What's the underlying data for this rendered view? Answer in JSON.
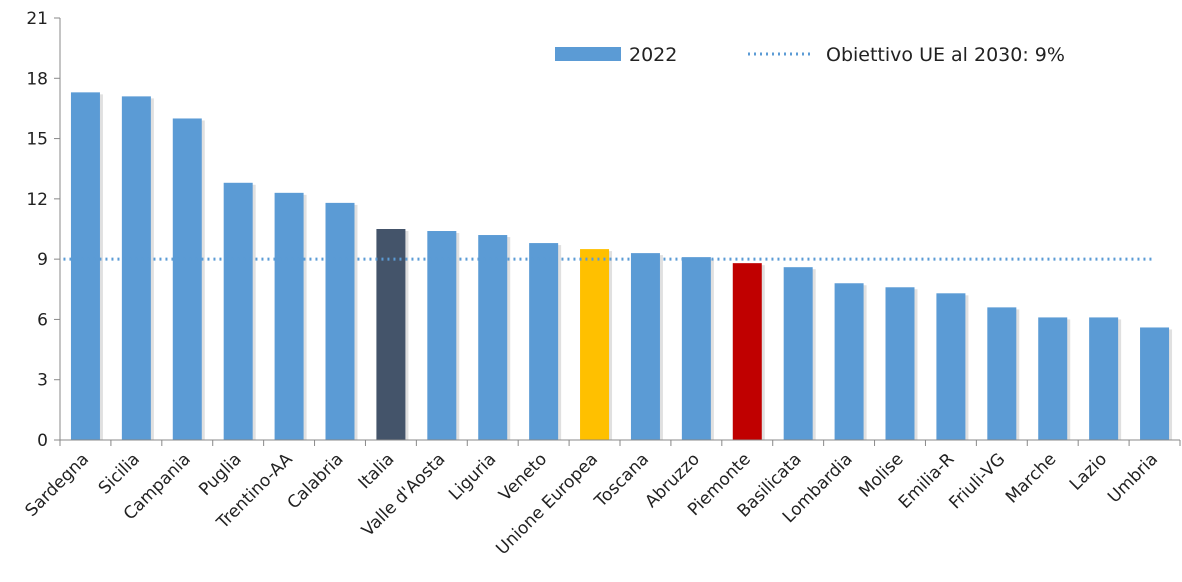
{
  "chart_data": {
    "type": "bar",
    "categories": [
      "Sardegna",
      "Sicilia",
      "Campania",
      "Puglia",
      "Trentino-AA",
      "Calabria",
      "Italia",
      "Valle d'Aosta",
      "Liguria",
      "Veneto",
      "Unione Europea",
      "Toscana",
      "Abruzzo",
      "Piemonte",
      "Basilicata",
      "Lombardia",
      "Molise",
      "Emilia-R",
      "Friuli-VG",
      "Marche",
      "Lazio",
      "Umbria"
    ],
    "series": [
      {
        "name": "2022",
        "values": [
          17.3,
          17.1,
          16.0,
          12.8,
          12.3,
          11.8,
          10.5,
          10.4,
          10.2,
          9.8,
          9.5,
          9.3,
          9.1,
          8.8,
          8.6,
          7.8,
          7.6,
          7.3,
          6.6,
          6.1,
          6.1,
          5.6
        ]
      }
    ],
    "reference_line": {
      "name": "Obiettivo UE al 2030: 9%",
      "value": 9
    },
    "yticks": [
      "0",
      "3",
      "6",
      "9",
      "12",
      "15",
      "18",
      "21"
    ],
    "ylim": [
      0,
      21
    ],
    "title": "",
    "xlabel": "",
    "ylabel": "",
    "legend_position": "top-right",
    "grid": false,
    "colors": {
      "default_bar": "#5b9bd5",
      "Italia": "#44546a",
      "Unione Europea": "#ffc000",
      "Piemonte": "#c00000",
      "reference_line": "#5b9bd5",
      "axis": "#888888"
    }
  }
}
